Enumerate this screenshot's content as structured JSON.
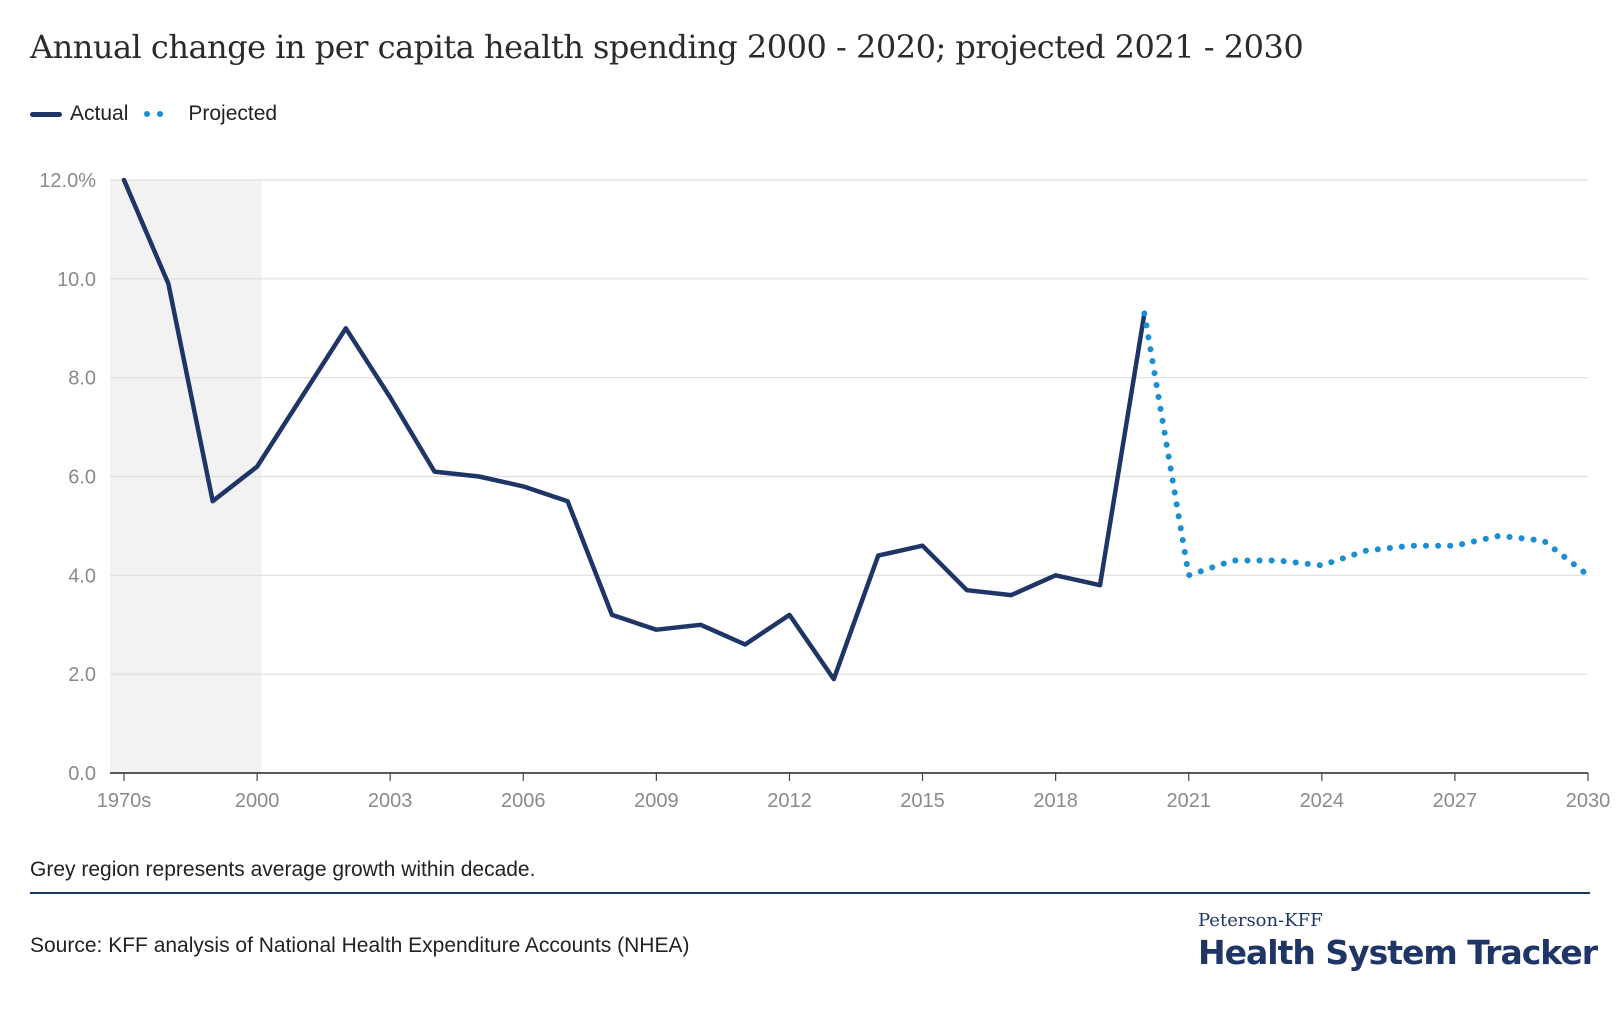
{
  "header": {
    "title": "Annual change in per capita health spending 2000 - 2020; projected 2021 - 2030"
  },
  "legend": {
    "actual": "Actual",
    "projected": "Projected"
  },
  "footer": {
    "note": "Grey region represents average growth within decade.",
    "source": "Source: KFF analysis of National Health Expenditure Accounts (NHEA)"
  },
  "logo": {
    "line1": "Peterson-KFF",
    "line2": "Health System Tracker"
  },
  "colors": {
    "actual": "#1f3566",
    "projected": "#1b8fd2",
    "shade": "#f2f2f2",
    "grid": "#dedede"
  },
  "chart_data": {
    "type": "line",
    "x_ticks": [
      {
        "i": 0,
        "label": "1970s"
      },
      {
        "i": 3,
        "label": "2000"
      },
      {
        "i": 6,
        "label": "2003"
      },
      {
        "i": 9,
        "label": "2006"
      },
      {
        "i": 12,
        "label": "2009"
      },
      {
        "i": 15,
        "label": "2012"
      },
      {
        "i": 18,
        "label": "2015"
      },
      {
        "i": 21,
        "label": "2018"
      },
      {
        "i": 24,
        "label": "2021"
      },
      {
        "i": 27,
        "label": "2024"
      },
      {
        "i": 30,
        "label": "2027"
      },
      {
        "i": 33,
        "label": "2030"
      }
    ],
    "y_ticks": [
      "0.0",
      "2.0",
      "4.0",
      "6.0",
      "8.0",
      "10.0",
      "12.0%"
    ],
    "ylim": [
      0,
      12
    ],
    "shaded_region": [
      0,
      3.1
    ],
    "grid": true,
    "legend_position": "top-left",
    "series": [
      {
        "name": "Actual",
        "style": "solid",
        "x": [
          0,
          1,
          2,
          3,
          4,
          5,
          6,
          7,
          8,
          9,
          10,
          11,
          12,
          13,
          14,
          15,
          16,
          17,
          18,
          19,
          20,
          21,
          22,
          23
        ],
        "values": [
          12.0,
          9.9,
          5.5,
          6.2,
          7.6,
          9.0,
          7.6,
          6.1,
          6.0,
          5.8,
          5.5,
          3.2,
          2.9,
          3.0,
          2.6,
          3.2,
          1.9,
          4.4,
          4.6,
          3.7,
          3.6,
          4.0,
          3.8,
          9.3
        ]
      },
      {
        "name": "Projected",
        "style": "dotted",
        "x": [
          23,
          24,
          25,
          26,
          27,
          28,
          29,
          30,
          31,
          32,
          33
        ],
        "values": [
          9.3,
          4.0,
          4.3,
          4.3,
          4.2,
          4.5,
          4.6,
          4.6,
          4.8,
          4.7,
          4.0
        ]
      }
    ]
  }
}
